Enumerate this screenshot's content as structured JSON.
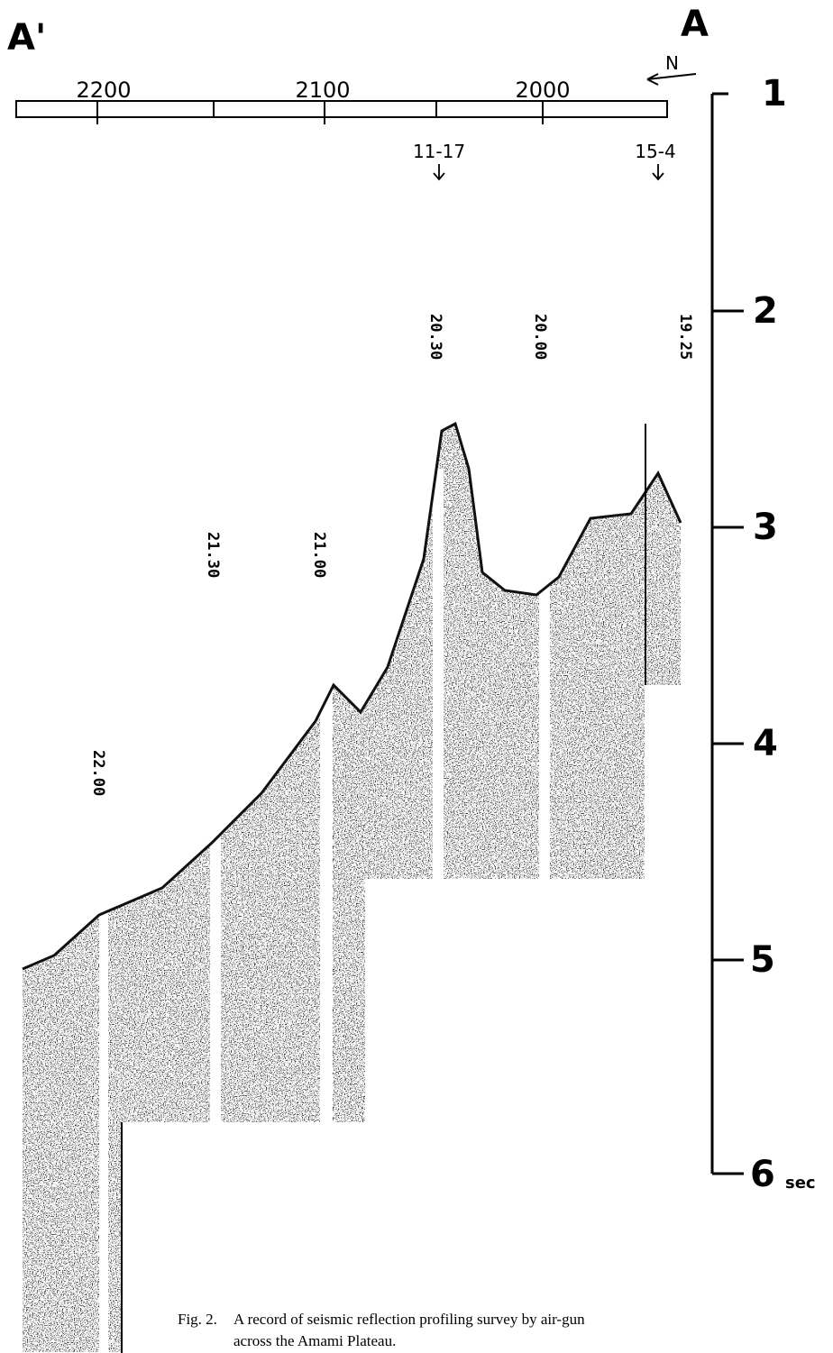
{
  "figure": {
    "corner_labels": [
      "A'",
      "A"
    ],
    "north_label": "N",
    "scale_labels": [
      "2200",
      "2100",
      "2000"
    ],
    "station_labels": [
      "11-17",
      "15-4"
    ],
    "time_marks": [
      "22.00",
      "21.30",
      "21.00",
      "20.30",
      "20.00",
      "19.25"
    ],
    "depth_ticks": [
      "1",
      "2",
      "3",
      "4",
      "5",
      "6"
    ],
    "depth_unit": "sec",
    "caption": {
      "label": "Fig. 2.",
      "text": "A record of seismic reflection profiling survey by air-gun across the Amami Plateau."
    }
  }
}
